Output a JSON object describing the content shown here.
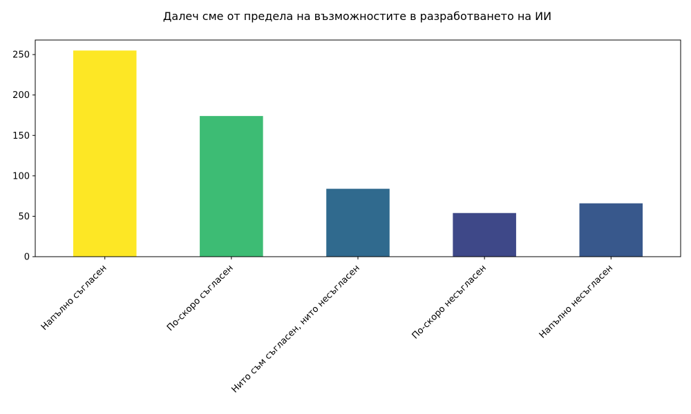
{
  "chart_data": {
    "type": "bar",
    "title": "Далеч сме от предела на възможностите в разработването на ИИ",
    "xlabel": "",
    "ylabel": "",
    "categories": [
      "Напълно съгласен",
      "По-скоро съгласен",
      "Нито съм съгласен, нито несъгласен",
      "По-скоро несъгласен",
      "Напълно несъгласен"
    ],
    "values": [
      255,
      174,
      84,
      54,
      66
    ],
    "colors": [
      "#fde725",
      "#3dbc74",
      "#306a8e",
      "#3e4888",
      "#38588c"
    ],
    "ylim": [
      0,
      268
    ],
    "yticks": [
      0,
      50,
      100,
      150,
      200,
      250
    ],
    "grid": false,
    "legend": "none"
  }
}
